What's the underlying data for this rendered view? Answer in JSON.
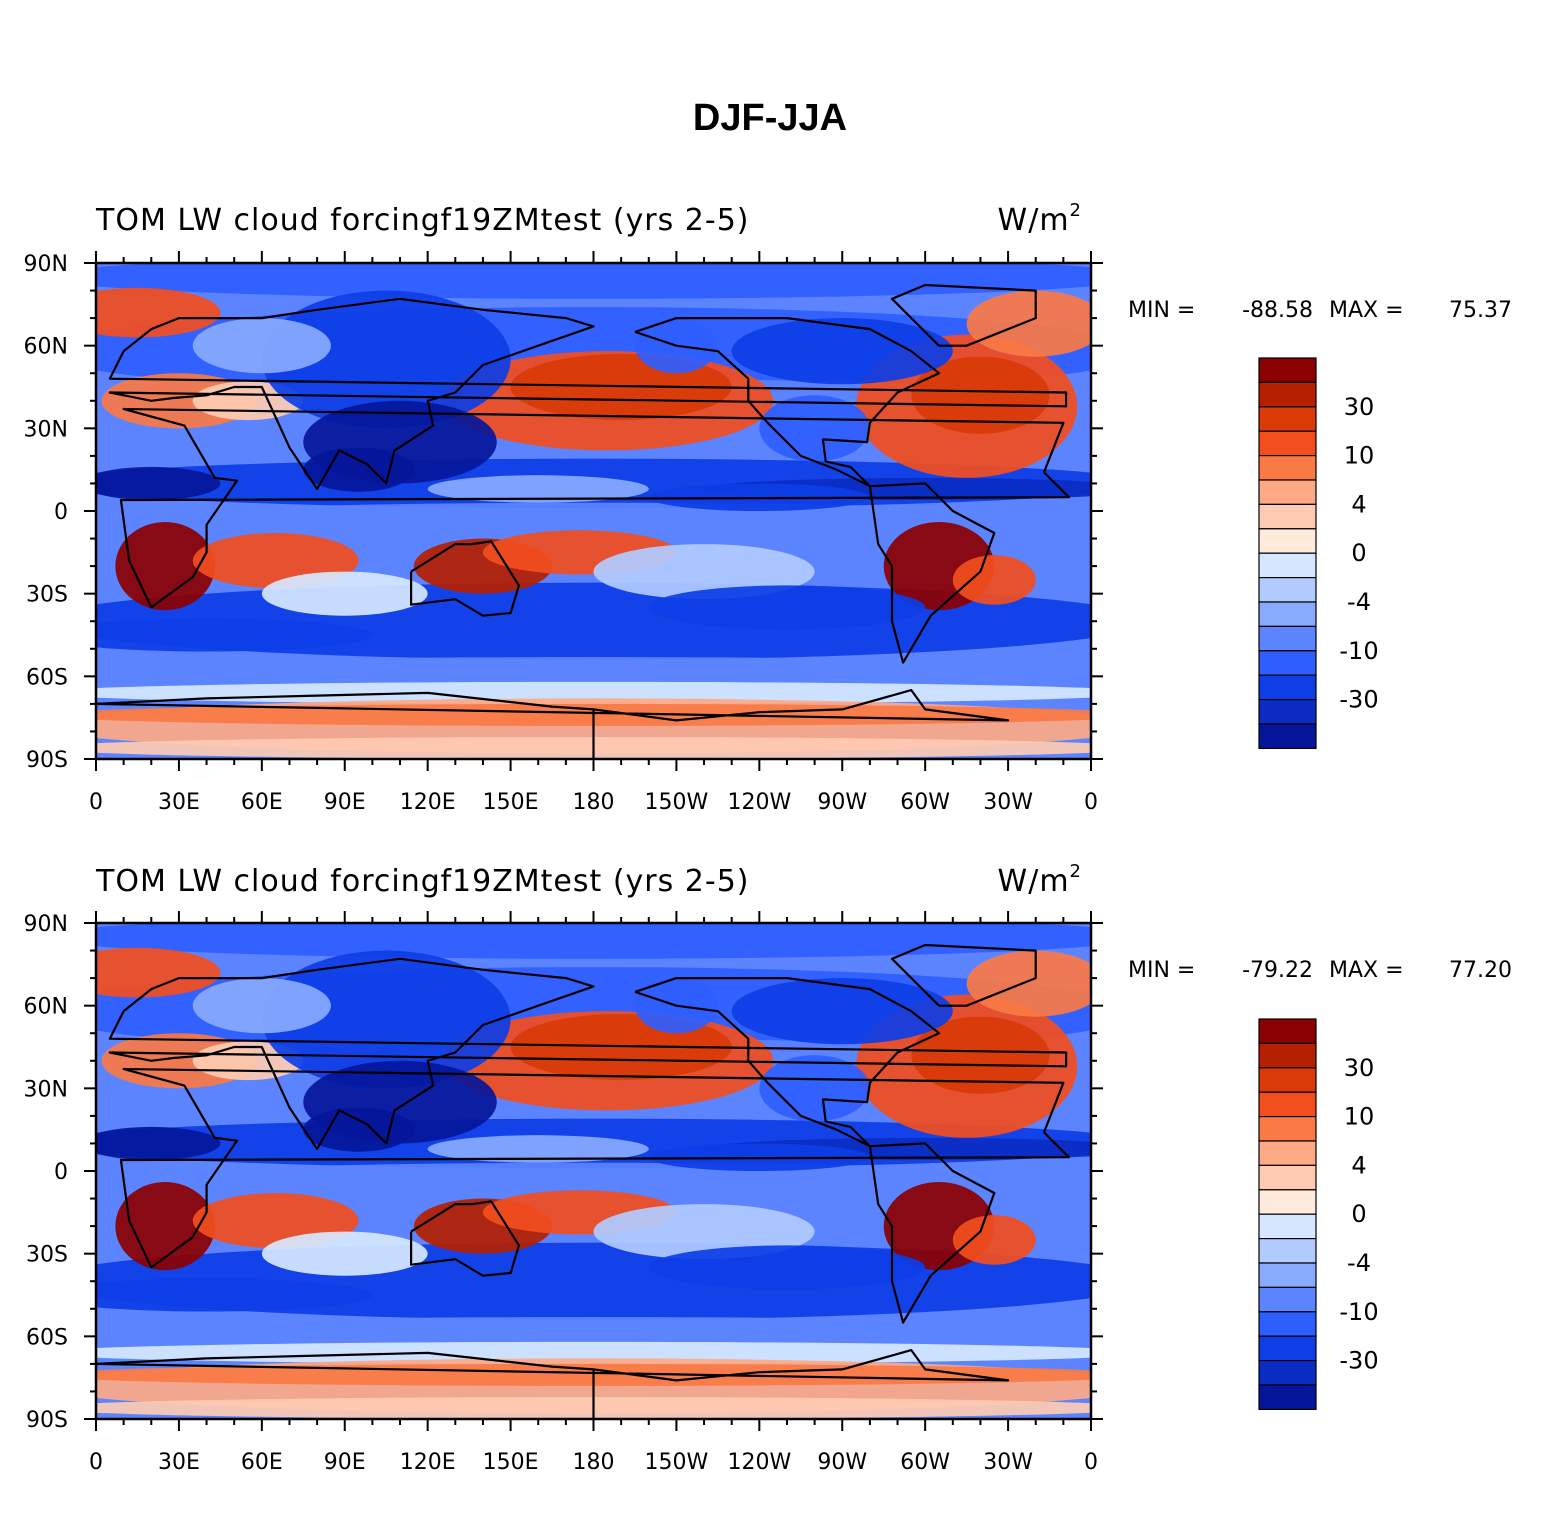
{
  "title": "DJF-JJA",
  "chart_data": {
    "type": "heatmap",
    "projection": "cylindrical equidistant",
    "x_ticks": [
      "0",
      "30E",
      "60E",
      "90E",
      "120E",
      "150E",
      "180",
      "150W",
      "120W",
      "90W",
      "60W",
      "30W",
      "0"
    ],
    "y_ticks": [
      "90N",
      "60N",
      "30N",
      "0",
      "30S",
      "60S",
      "90S"
    ],
    "xlim": [
      0,
      360
    ],
    "ylim": [
      -90,
      90
    ],
    "colorbar": {
      "labels": [
        "30",
        "10",
        "4",
        "0",
        "-4",
        "-10",
        "-30"
      ],
      "colors": [
        "#8b0000",
        "#b52000",
        "#d93a08",
        "#f24e1e",
        "#fa7a45",
        "#fda985",
        "#fecbb2",
        "#ffeadc",
        "#d6e8ff",
        "#b1cbff",
        "#88aaff",
        "#5c84ff",
        "#2f5eff",
        "#0d3ee6",
        "#0a2cc2",
        "#05169a"
      ]
    },
    "panels": [
      {
        "left_label": "TOM LW cloud forcing",
        "center_label": "f19ZMtest (yrs 2-5)",
        "units_base": "W/m",
        "units_exp": "2",
        "min_label": "MIN =",
        "min_value": "-88.58",
        "max_label": "MAX =",
        "max_value": "75.37"
      },
      {
        "left_label": "TOM LW cloud forcing",
        "center_label": "f19ZMtest (yrs 2-5)",
        "units_base": "W/m",
        "units_exp": "2",
        "min_label": "MIN =",
        "min_value": "-79.22",
        "max_label": "MAX =",
        "max_value": "77.20"
      }
    ]
  }
}
